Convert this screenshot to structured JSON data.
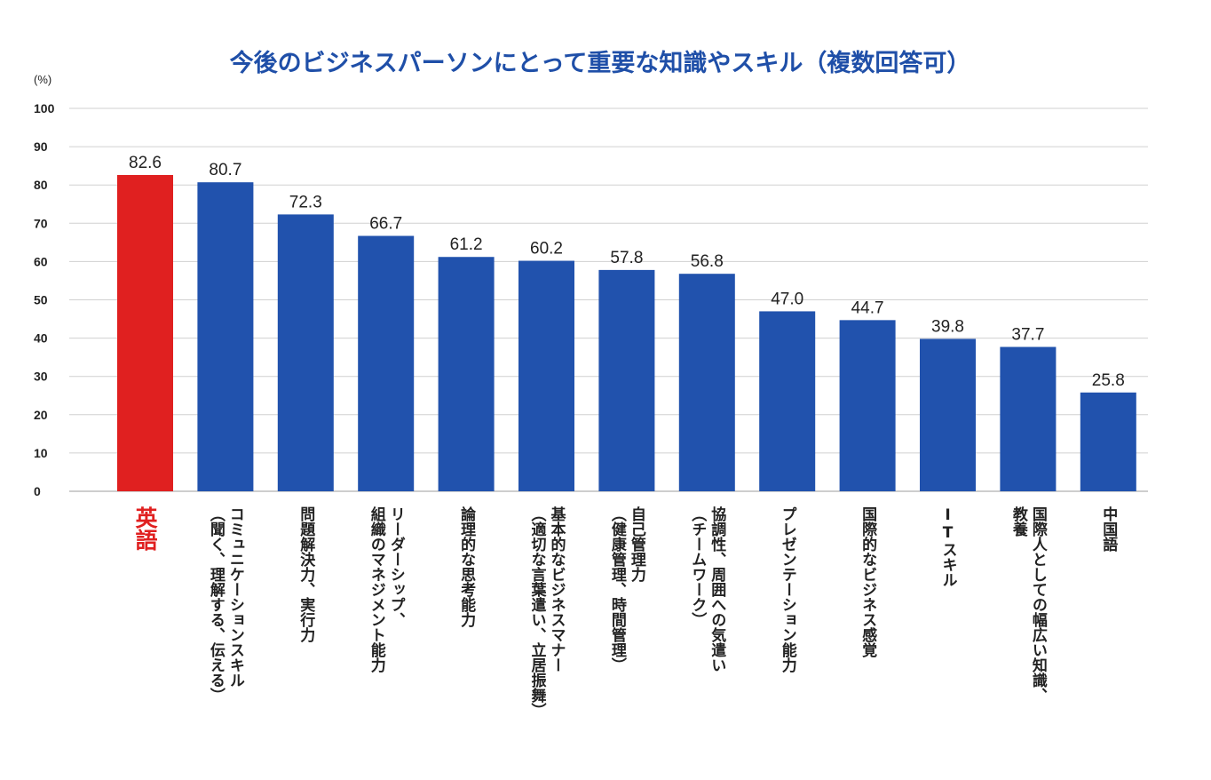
{
  "chart_data": {
    "type": "bar",
    "title": "今後のビジネスパーソンにとって重要な知識やスキル（複数回答可）",
    "ylabel": "(%)",
    "xlabel": "",
    "ylim": [
      0,
      100
    ],
    "yticks": [
      0,
      10,
      20,
      30,
      40,
      50,
      60,
      70,
      80,
      90,
      100
    ],
    "grid": true,
    "colors": {
      "bar": "#2152ad",
      "highlight": "#e02020",
      "title": "#1f4fa8"
    },
    "highlight_index": 0,
    "categories": [
      [
        "英語"
      ],
      [
        "コミュニケーションスキル",
        "（聞く、理解する、伝える）"
      ],
      [
        "問題解決力、実行力"
      ],
      [
        "リーダーシップ、",
        "組織のマネジメント能力"
      ],
      [
        "論理的な思考能力"
      ],
      [
        "基本的なビジネスマナー",
        "（適切な言葉遣い、立居振舞）"
      ],
      [
        "自己管理力",
        "（健康管理、時間管理）"
      ],
      [
        "協調性、周囲への気遣い",
        "（チームワーク）"
      ],
      [
        "プレゼンテーション能力"
      ],
      [
        "国際的なビジネス感覚"
      ],
      [
        "ITスキル"
      ],
      [
        "国際人としての幅広い知識、",
        "教養"
      ],
      [
        "中国語"
      ]
    ],
    "values": [
      82.6,
      80.7,
      72.3,
      66.7,
      61.2,
      60.2,
      57.8,
      56.8,
      47.0,
      44.7,
      39.8,
      37.7,
      25.8
    ],
    "value_labels": [
      "82.6",
      "80.7",
      "72.3",
      "66.7",
      "61.2",
      "60.2",
      "57.8",
      "56.8",
      "47.0",
      "44.7",
      "39.8",
      "37.7",
      "25.8"
    ]
  }
}
